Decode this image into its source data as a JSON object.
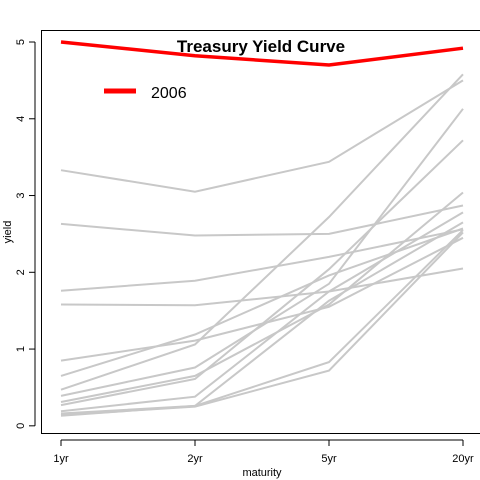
{
  "chart_data": {
    "type": "line",
    "title": "Treasury Yield Curve",
    "xlabel": "maturity",
    "ylabel": "yield",
    "categories": [
      "1yr",
      "2yr",
      "5yr",
      "20yr"
    ],
    "yticks": [
      0,
      1,
      2,
      3,
      4,
      5
    ],
    "ylim": [
      -0.1,
      5.15
    ],
    "grid": false,
    "legend": {
      "position": "top-left",
      "entries": [
        {
          "name": "2006",
          "color": "#ff0000"
        }
      ]
    },
    "highlight": {
      "name": "2006",
      "color": "#ff0000",
      "values": [
        5.0,
        4.82,
        4.7,
        4.92
      ]
    },
    "background_color": "#c8c8c8",
    "background_series": [
      {
        "values": [
          3.33,
          3.05,
          3.44,
          4.5
        ]
      },
      {
        "values": [
          2.63,
          2.48,
          2.5,
          2.87
        ]
      },
      {
        "values": [
          1.76,
          1.89,
          2.2,
          2.56
        ]
      },
      {
        "values": [
          1.58,
          1.57,
          1.75,
          2.05
        ]
      },
      {
        "values": [
          0.85,
          1.11,
          1.55,
          2.45
        ]
      },
      {
        "values": [
          0.65,
          1.19,
          1.96,
          2.57
        ]
      },
      {
        "values": [
          0.47,
          1.06,
          2.72,
          4.58
        ]
      },
      {
        "values": [
          0.39,
          0.76,
          1.85,
          4.13
        ]
      },
      {
        "values": [
          0.31,
          0.65,
          1.58,
          3.04
        ]
      },
      {
        "values": [
          0.27,
          0.61,
          2.04,
          3.72
        ]
      },
      {
        "values": [
          0.19,
          0.38,
          1.75,
          2.78
        ]
      },
      {
        "values": [
          0.16,
          0.26,
          0.83,
          2.55
        ]
      },
      {
        "values": [
          0.14,
          0.25,
          0.72,
          2.52
        ]
      },
      {
        "values": [
          0.13,
          0.26,
          1.63,
          2.65
        ]
      }
    ]
  }
}
